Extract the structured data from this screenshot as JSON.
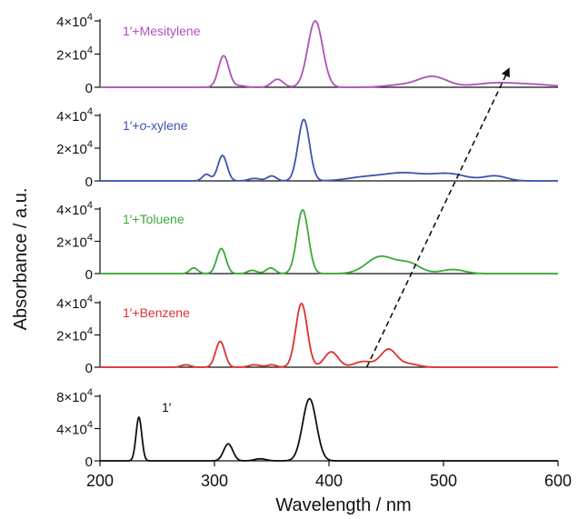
{
  "chart_data": {
    "type": "line",
    "xlabel": "Wavelength / nm",
    "ylabel": "Absorbance / a.u.",
    "xlim": [
      200,
      600
    ],
    "x_ticks": [
      200,
      300,
      400,
      500,
      600
    ],
    "x_tick_labels": [
      "200",
      "300",
      "400",
      "500",
      "600"
    ],
    "panels": [
      {
        "label": "1′+Mesitylene",
        "color": "#b050b8",
        "ylim": [
          0,
          40000
        ],
        "y_ticks": [
          0,
          20000,
          40000
        ],
        "y_tick_labels": [
          {
            "text": "0"
          },
          {
            "mant": "2×10",
            "exp": "4"
          },
          {
            "mant": "4×10",
            "exp": "4"
          }
        ],
        "peaks": [
          {
            "c": 308,
            "h": 19000,
            "w": 4.5
          },
          {
            "c": 322,
            "h": 900,
            "w": 5
          },
          {
            "c": 355,
            "h": 4800,
            "w": 5
          },
          {
            "c": 388,
            "h": 40000,
            "w": 6.5
          },
          {
            "c": 460,
            "h": 1200,
            "w": 12
          },
          {
            "c": 490,
            "h": 6500,
            "w": 13
          },
          {
            "c": 545,
            "h": 2500,
            "w": 18
          },
          {
            "c": 580,
            "h": 1500,
            "w": 18
          }
        ]
      },
      {
        "label": "1′+o-xylene",
        "label_parts": [
          "1′+",
          "o",
          "-xylene"
        ],
        "color": "#3a55b0",
        "ylim": [
          0,
          40000
        ],
        "y_ticks": [
          0,
          20000,
          40000
        ],
        "y_tick_labels": [
          {
            "text": "0"
          },
          {
            "mant": "2×10",
            "exp": "4"
          },
          {
            "mant": "4×10",
            "exp": "4"
          }
        ],
        "peaks": [
          {
            "c": 293,
            "h": 4000,
            "w": 3.5
          },
          {
            "c": 307,
            "h": 15500,
            "w": 4
          },
          {
            "c": 335,
            "h": 1500,
            "w": 5
          },
          {
            "c": 350,
            "h": 3000,
            "w": 4
          },
          {
            "c": 378,
            "h": 37500,
            "w": 5
          },
          {
            "c": 430,
            "h": 2000,
            "w": 15
          },
          {
            "c": 465,
            "h": 4800,
            "w": 18
          },
          {
            "c": 505,
            "h": 4200,
            "w": 15
          },
          {
            "c": 545,
            "h": 3000,
            "w": 10
          }
        ]
      },
      {
        "label": "1′+Toluene",
        "color": "#3aaa35",
        "ylim": [
          0,
          40000
        ],
        "y_ticks": [
          0,
          20000,
          40000
        ],
        "y_tick_labels": [
          {
            "text": "0"
          },
          {
            "mant": "2×10",
            "exp": "4"
          },
          {
            "mant": "4×10",
            "exp": "4"
          }
        ],
        "peaks": [
          {
            "c": 282,
            "h": 3500,
            "w": 3.5
          },
          {
            "c": 306,
            "h": 15500,
            "w": 4
          },
          {
            "c": 333,
            "h": 2000,
            "w": 4
          },
          {
            "c": 349,
            "h": 3500,
            "w": 4
          },
          {
            "c": 377,
            "h": 39500,
            "w": 5
          },
          {
            "c": 445,
            "h": 10500,
            "w": 12
          },
          {
            "c": 470,
            "h": 6000,
            "w": 10
          },
          {
            "c": 508,
            "h": 2500,
            "w": 10
          }
        ]
      },
      {
        "label": "1′+Benzene",
        "color": "#e03030",
        "ylim": [
          0,
          40000
        ],
        "y_ticks": [
          0,
          20000,
          40000
        ],
        "y_tick_labels": [
          {
            "text": "0"
          },
          {
            "mant": "2×10",
            "exp": "4"
          },
          {
            "mant": "4×10",
            "exp": "4"
          }
        ],
        "peaks": [
          {
            "c": 275,
            "h": 1500,
            "w": 4
          },
          {
            "c": 305,
            "h": 16000,
            "w": 4
          },
          {
            "c": 335,
            "h": 1500,
            "w": 5
          },
          {
            "c": 350,
            "h": 1500,
            "w": 4
          },
          {
            "c": 376,
            "h": 39500,
            "w": 5
          },
          {
            "c": 402,
            "h": 9500,
            "w": 6
          },
          {
            "c": 430,
            "h": 3500,
            "w": 8
          },
          {
            "c": 452,
            "h": 11000,
            "w": 7
          },
          {
            "c": 470,
            "h": 2000,
            "w": 8
          }
        ]
      },
      {
        "label": "1′",
        "color": "#111111",
        "ylim": [
          0,
          80000
        ],
        "y_ticks": [
          0,
          40000,
          80000
        ],
        "y_tick_labels": [
          {
            "text": "0"
          },
          {
            "mant": "4×10",
            "exp": "4"
          },
          {
            "mant": "8×10",
            "exp": "4"
          }
        ],
        "peaks": [
          {
            "c": 234,
            "h": 54000,
            "w": 2.5
          },
          {
            "c": 312,
            "h": 21000,
            "w": 4
          },
          {
            "c": 340,
            "h": 2500,
            "w": 5
          },
          {
            "c": 383,
            "h": 77000,
            "w": 6
          }
        ]
      }
    ],
    "arrow": {
      "from": [
        433,
        "panel 4 baseline"
      ],
      "to": [
        557,
        "panel 1 top"
      ],
      "style": "dashed"
    }
  }
}
